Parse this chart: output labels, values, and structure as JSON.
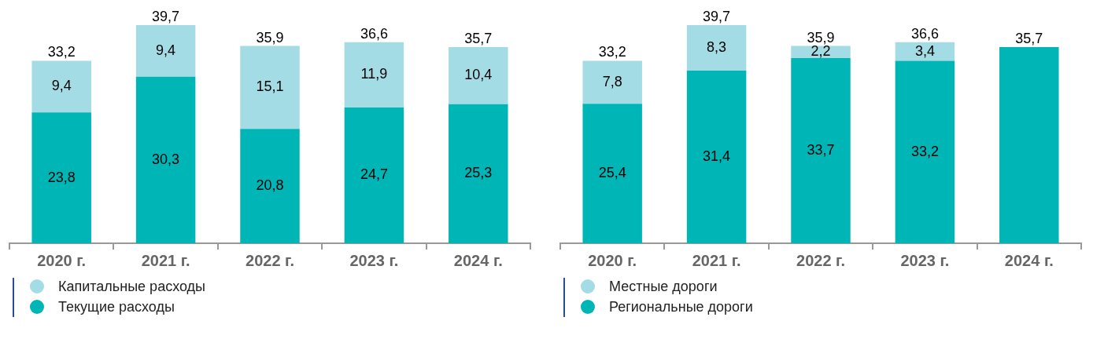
{
  "chart_data": [
    {
      "type": "bar",
      "stacked": true,
      "legend": "bottom",
      "categories": [
        "2020 г.",
        "2021 г.",
        "2022 г.",
        "2023 г.",
        "2024 г."
      ],
      "series": [
        {
          "name": "Текущие расходы",
          "color": "#00b5b5",
          "values": [
            23.8,
            30.3,
            20.8,
            24.7,
            25.3
          ],
          "value_labels": [
            "23,8",
            "30,3",
            "20,8",
            "24,7",
            "25,3"
          ]
        },
        {
          "name": "Капитальные расходы",
          "color": "#a3dce4",
          "values": [
            9.4,
            9.4,
            15.1,
            11.9,
            10.4
          ],
          "value_labels": [
            "9,4",
            "9,4",
            "15,1",
            "11,9",
            "10,4"
          ]
        }
      ],
      "totals": [
        "33,2",
        "39,7",
        "35,9",
        "36,6",
        "35,7"
      ]
    },
    {
      "type": "bar",
      "stacked": true,
      "legend": "bottom",
      "categories": [
        "2020 г.",
        "2021 г.",
        "2022 г.",
        "2023 г.",
        "2024 г."
      ],
      "series": [
        {
          "name": "Региональные дороги",
          "color": "#00b5b5",
          "values": [
            25.4,
            31.4,
            33.7,
            33.2,
            35.7
          ],
          "value_labels": [
            "25,4",
            "31,4",
            "33,7",
            "33,2",
            null
          ]
        },
        {
          "name": "Местные дороги",
          "color": "#a3dce4",
          "values": [
            7.8,
            8.3,
            2.2,
            3.4,
            null
          ],
          "value_labels": [
            "7,8",
            "8,3",
            "2,2",
            "3,4",
            null
          ]
        }
      ],
      "totals": [
        "33,2",
        "39,7",
        "35,9",
        "36,6",
        "35,7"
      ]
    }
  ]
}
